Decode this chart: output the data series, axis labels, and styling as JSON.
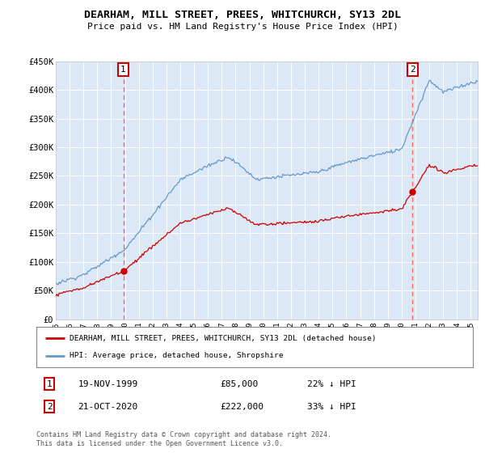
{
  "title": "DEARHAM, MILL STREET, PREES, WHITCHURCH, SY13 2DL",
  "subtitle": "Price paid vs. HM Land Registry's House Price Index (HPI)",
  "ylim": [
    0,
    450000
  ],
  "yticks": [
    0,
    50000,
    100000,
    150000,
    200000,
    250000,
    300000,
    350000,
    400000,
    450000
  ],
  "ytick_labels": [
    "£0",
    "£50K",
    "£100K",
    "£150K",
    "£200K",
    "£250K",
    "£300K",
    "£350K",
    "£400K",
    "£450K"
  ],
  "xlim_start": 1995.0,
  "xlim_end": 2025.5,
  "bg_color": "#dce8f5",
  "grid_color": "#ffffff",
  "legend1_label": "DEARHAM, MILL STREET, PREES, WHITCHURCH, SY13 2DL (detached house)",
  "legend2_label": "HPI: Average price, detached house, Shropshire",
  "point1_date": "19-NOV-1999",
  "point1_price": "£85,000",
  "point1_hpi": "22% ↓ HPI",
  "point2_date": "21-OCT-2020",
  "point2_price": "£222,000",
  "point2_hpi": "33% ↓ HPI",
  "footer": "Contains HM Land Registry data © Crown copyright and database right 2024.\nThis data is licensed under the Open Government Licence v3.0.",
  "red_color": "#cc0000",
  "blue_color": "#6699cc",
  "dashed_color": "#ff6666",
  "marker_box_color": "#cc0000",
  "sale1_x": 1999.88,
  "sale1_y": 85000,
  "sale2_x": 2020.79,
  "sale2_y": 222000
}
